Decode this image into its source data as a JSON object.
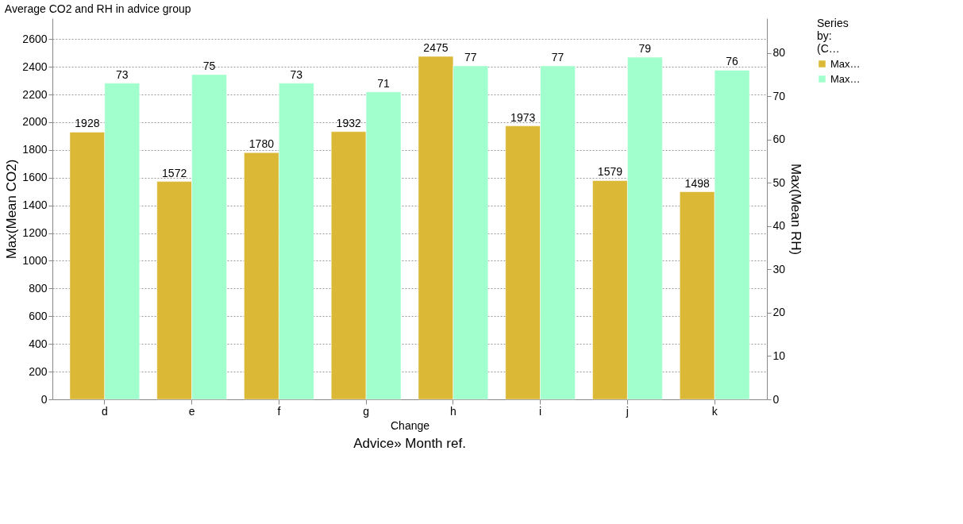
{
  "chart_data": {
    "type": "bar",
    "title": "Average CO2 and RH in advice group",
    "xlabel": "Change",
    "ylabel": "Max(Mean CO2)",
    "y2label": "Max(Mean RH)",
    "legend_title": "Series by: (C…",
    "categories": [
      "d",
      "e",
      "f",
      "g",
      "h",
      "i",
      "j",
      "k"
    ],
    "series": [
      {
        "name": "Max…",
        "color": "#dbb936",
        "values": [
          1928,
          1572,
          1780,
          1932,
          2475,
          1973,
          1579,
          1498
        ]
      },
      {
        "name": "Max…",
        "color": "#a0ffcc",
        "axis": "y2",
        "values": [
          73,
          75,
          73,
          71,
          77,
          77,
          79,
          76
        ]
      }
    ],
    "ylim": [
      0,
      2750
    ],
    "yticks": [
      0,
      200,
      400,
      600,
      800,
      1000,
      1200,
      1400,
      1600,
      1800,
      2000,
      2200,
      2400,
      2600
    ],
    "y2lim": [
      0,
      88
    ],
    "y2ticks": [
      0,
      10,
      20,
      30,
      40,
      50,
      60,
      70,
      80
    ],
    "grid": "y",
    "legend": "top right",
    "data_labels": true,
    "annotations": [
      "Advice» Month ref."
    ]
  }
}
